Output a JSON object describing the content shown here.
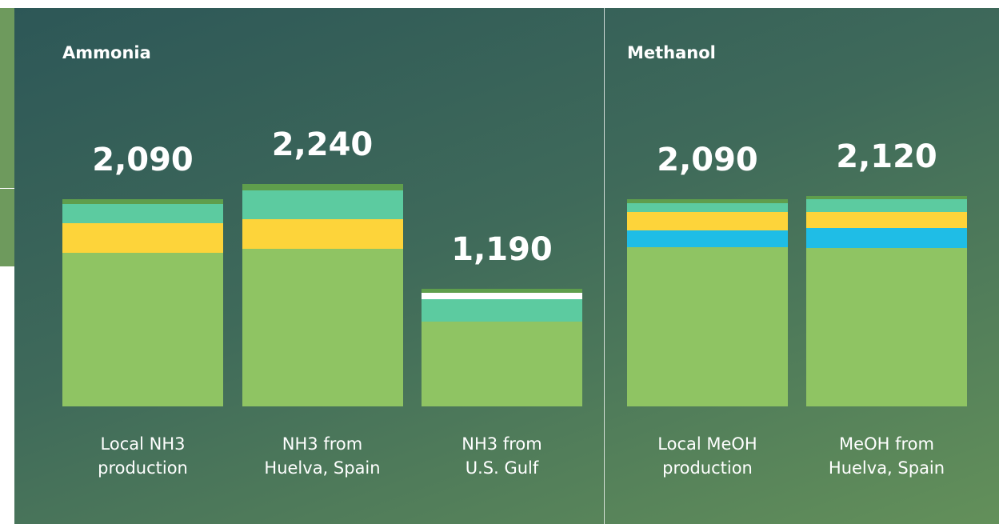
{
  "chart_data": [
    {
      "type": "stacked-bar",
      "title": "Ammonia",
      "categories": [
        "Local NH3\nproduction",
        "NH3 from\nHuelva, Spain",
        "NH3 from\nU.S. Gulf"
      ],
      "total_labels": [
        "2,090",
        "2,240",
        "1,190"
      ],
      "series": [
        {
          "color": "#8fc463",
          "values": [
            1549,
            1593,
            852
          ]
        },
        {
          "color": "#fdd43a",
          "values": [
            299,
            299,
            null
          ]
        },
        {
          "color": "#5ccba0",
          "values": [
            194,
            291,
            233
          ]
        },
        {
          "color": "#ffffff",
          "values": [
            null,
            null,
            64
          ]
        },
        {
          "color": "#5f9e4c",
          "values": [
            48,
            57,
            41
          ]
        }
      ]
    },
    {
      "type": "stacked-bar",
      "title": "Methanol",
      "categories": [
        "Local MeOH\nproduction",
        "MeOH from\nHuelva, Spain"
      ],
      "total_labels": [
        "2,090",
        "2,120"
      ],
      "series": [
        {
          "color": "#8fc463",
          "values": [
            1606,
            1596
          ]
        },
        {
          "color": "#1fbde6",
          "values": [
            169,
            202
          ]
        },
        {
          "color": "#fdd43a",
          "values": [
            186,
            161
          ]
        },
        {
          "color": "#5ccba0",
          "values": [
            89,
            129
          ]
        },
        {
          "color": "#5f9e4c",
          "values": [
            40,
            32
          ]
        }
      ]
    }
  ]
}
